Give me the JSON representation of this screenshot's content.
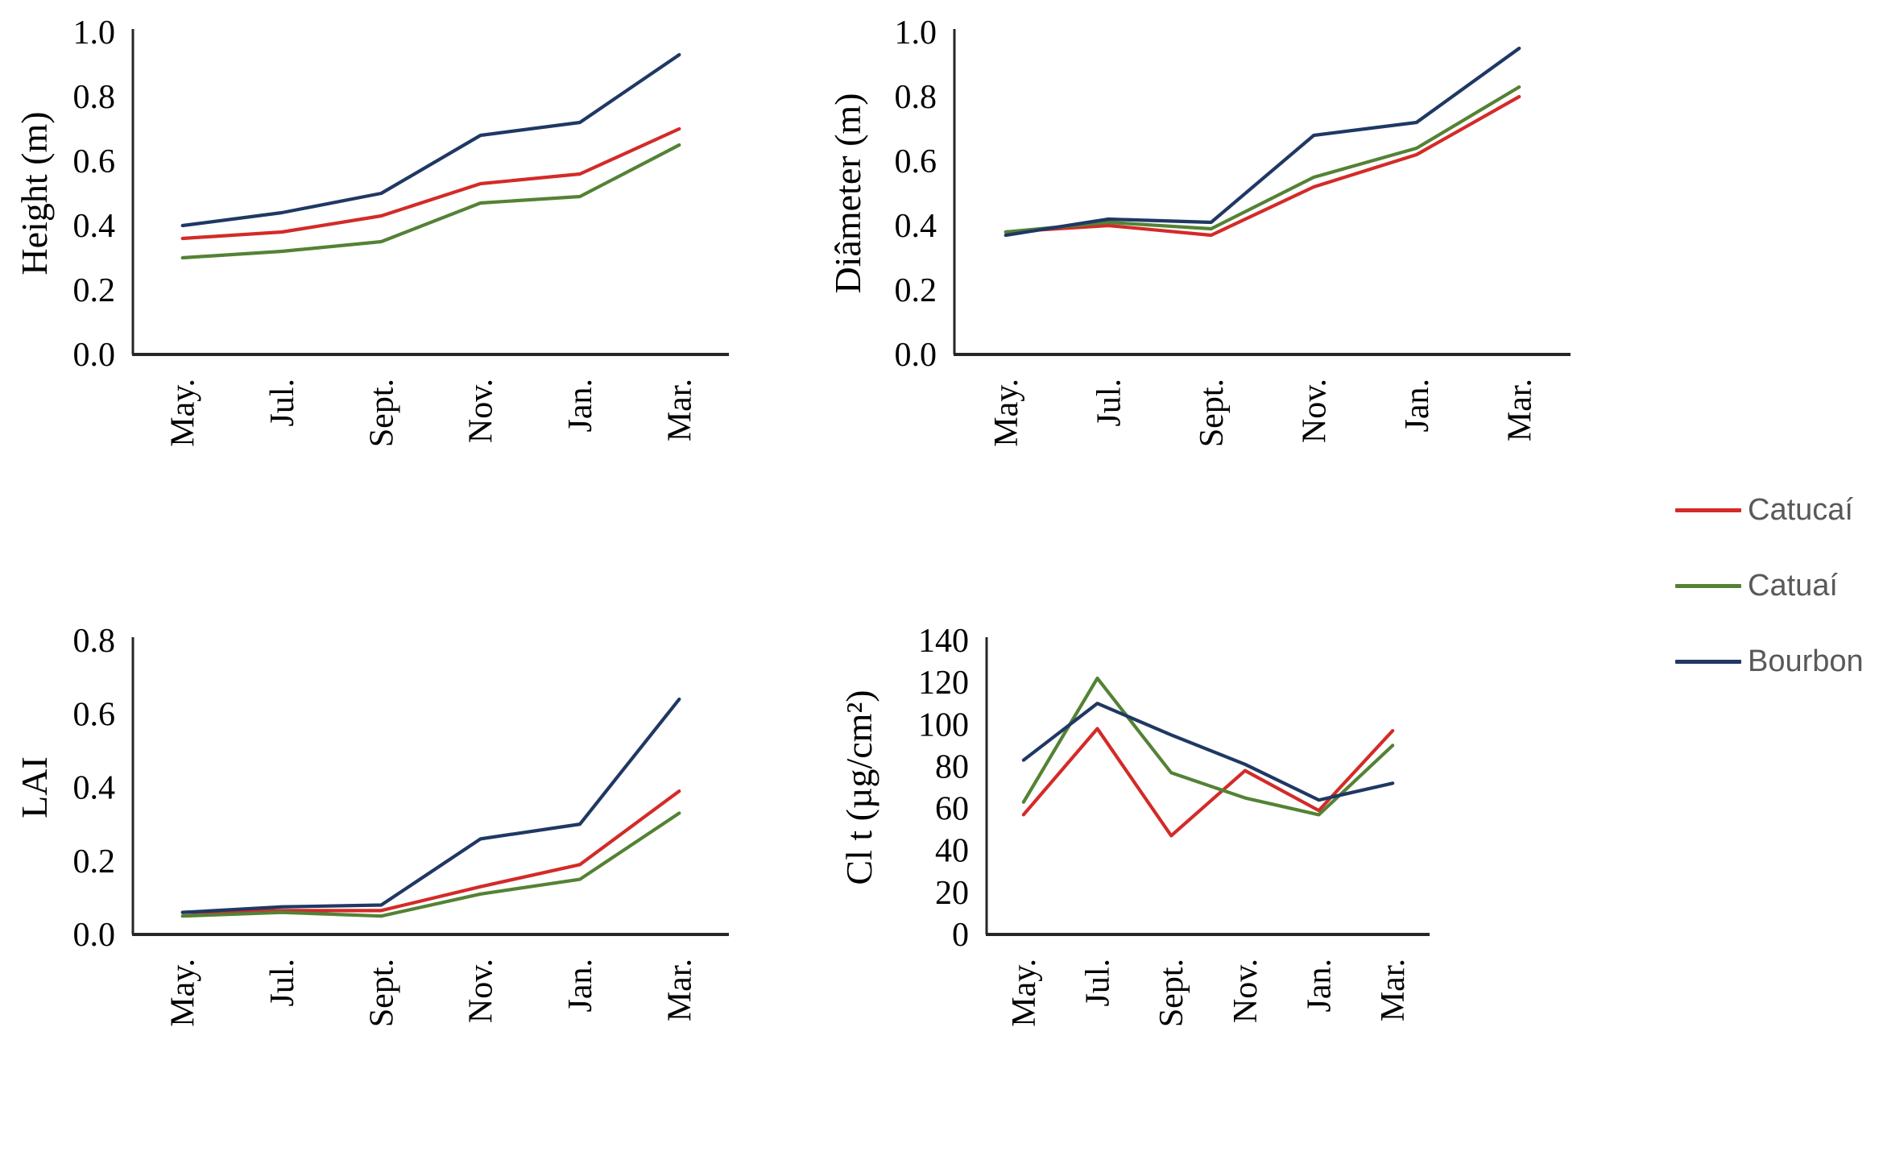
{
  "figure": {
    "background": "#ffffff",
    "categories": [
      "May.",
      "Jul.",
      "Sept.",
      "Nov.",
      "Jan.",
      "Mar."
    ],
    "colors": {
      "catucai_red": "#d32b28",
      "catuai_green": "#548235",
      "bourbon_navy": "#1f3864",
      "axis": "#262626",
      "tick_text": "#000000",
      "legend_text": "#595959"
    }
  },
  "legend": {
    "position": "right-middle-outside",
    "entries": [
      {
        "label": "Catucaí",
        "color": "#d32b28"
      },
      {
        "label": "Catuaí",
        "color": "#548235"
      },
      {
        "label": "Bourbon",
        "color": "#1f3864"
      }
    ]
  },
  "chart_data": [
    {
      "type": "line",
      "title": "",
      "ylabel": "Height (m)",
      "xlabel": "",
      "categories": [
        "May.",
        "Jul.",
        "Sept.",
        "Nov.",
        "Jan.",
        "Mar."
      ],
      "ylim": [
        0.0,
        1.0
      ],
      "yticks": [
        0.0,
        0.2,
        0.4,
        0.6,
        0.8,
        1.0
      ],
      "ytick_labels": [
        "0.0",
        "0.2",
        "0.4",
        "0.6",
        "0.8",
        "1.0"
      ],
      "grid": false,
      "series": [
        {
          "name": "Catucaí",
          "color": "#d32b28",
          "values": [
            0.36,
            0.38,
            0.43,
            0.53,
            0.56,
            0.7
          ]
        },
        {
          "name": "Catuaí",
          "color": "#548235",
          "values": [
            0.3,
            0.32,
            0.35,
            0.47,
            0.49,
            0.65
          ]
        },
        {
          "name": "Bourbon",
          "color": "#1f3864",
          "values": [
            0.4,
            0.44,
            0.5,
            0.68,
            0.72,
            0.93
          ]
        }
      ]
    },
    {
      "type": "line",
      "title": "",
      "ylabel": "Diâmeter (m)",
      "xlabel": "",
      "categories": [
        "May.",
        "Jul.",
        "Sept.",
        "Nov.",
        "Jan.",
        "Mar."
      ],
      "ylim": [
        0.0,
        1.0
      ],
      "yticks": [
        0.0,
        0.2,
        0.4,
        0.6,
        0.8,
        1.0
      ],
      "ytick_labels": [
        "0.0",
        "0.2",
        "0.4",
        "0.6",
        "0.8",
        "1.0"
      ],
      "grid": false,
      "series": [
        {
          "name": "Catucaí",
          "color": "#d32b28",
          "values": [
            0.38,
            0.4,
            0.37,
            0.52,
            0.62,
            0.8
          ]
        },
        {
          "name": "Catuaí",
          "color": "#548235",
          "values": [
            0.38,
            0.41,
            0.39,
            0.55,
            0.64,
            0.83
          ]
        },
        {
          "name": "Bourbon",
          "color": "#1f3864",
          "values": [
            0.37,
            0.42,
            0.41,
            0.68,
            0.72,
            0.95
          ]
        }
      ]
    },
    {
      "type": "line",
      "title": "",
      "ylabel": "LAI",
      "xlabel": "",
      "categories": [
        "May.",
        "Jul.",
        "Sept.",
        "Nov.",
        "Jan.",
        "Mar."
      ],
      "ylim": [
        0.0,
        0.8
      ],
      "yticks": [
        0.0,
        0.2,
        0.4,
        0.6,
        0.8
      ],
      "ytick_labels": [
        "0.0",
        "0.2",
        "0.4",
        "0.6",
        "0.8"
      ],
      "grid": false,
      "series": [
        {
          "name": "Catucaí",
          "color": "#d32b28",
          "values": [
            0.06,
            0.065,
            0.065,
            0.13,
            0.19,
            0.39
          ]
        },
        {
          "name": "Catuaí",
          "color": "#548235",
          "values": [
            0.05,
            0.06,
            0.05,
            0.11,
            0.15,
            0.33
          ]
        },
        {
          "name": "Bourbon",
          "color": "#1f3864",
          "values": [
            0.06,
            0.075,
            0.08,
            0.26,
            0.3,
            0.64
          ]
        }
      ]
    },
    {
      "type": "line",
      "title": "",
      "ylabel": "Cl t (µg/cm²)",
      "xlabel": "",
      "categories": [
        "May.",
        "Jul.",
        "Sept.",
        "Nov.",
        "Jan.",
        "Mar."
      ],
      "ylim": [
        0,
        140
      ],
      "yticks": [
        0,
        20,
        40,
        60,
        80,
        100,
        120,
        140
      ],
      "ytick_labels": [
        "0",
        "20",
        "40",
        "60",
        "80",
        "100",
        "120",
        "140"
      ],
      "grid": false,
      "series": [
        {
          "name": "Catucaí",
          "color": "#d32b28",
          "values": [
            57,
            98,
            47,
            78,
            59,
            97
          ]
        },
        {
          "name": "Catuaí",
          "color": "#548235",
          "values": [
            63,
            122,
            77,
            65,
            57,
            90
          ]
        },
        {
          "name": "Bourbon",
          "color": "#1f3864",
          "values": [
            83,
            110,
            95,
            81,
            64,
            72
          ]
        }
      ]
    }
  ]
}
